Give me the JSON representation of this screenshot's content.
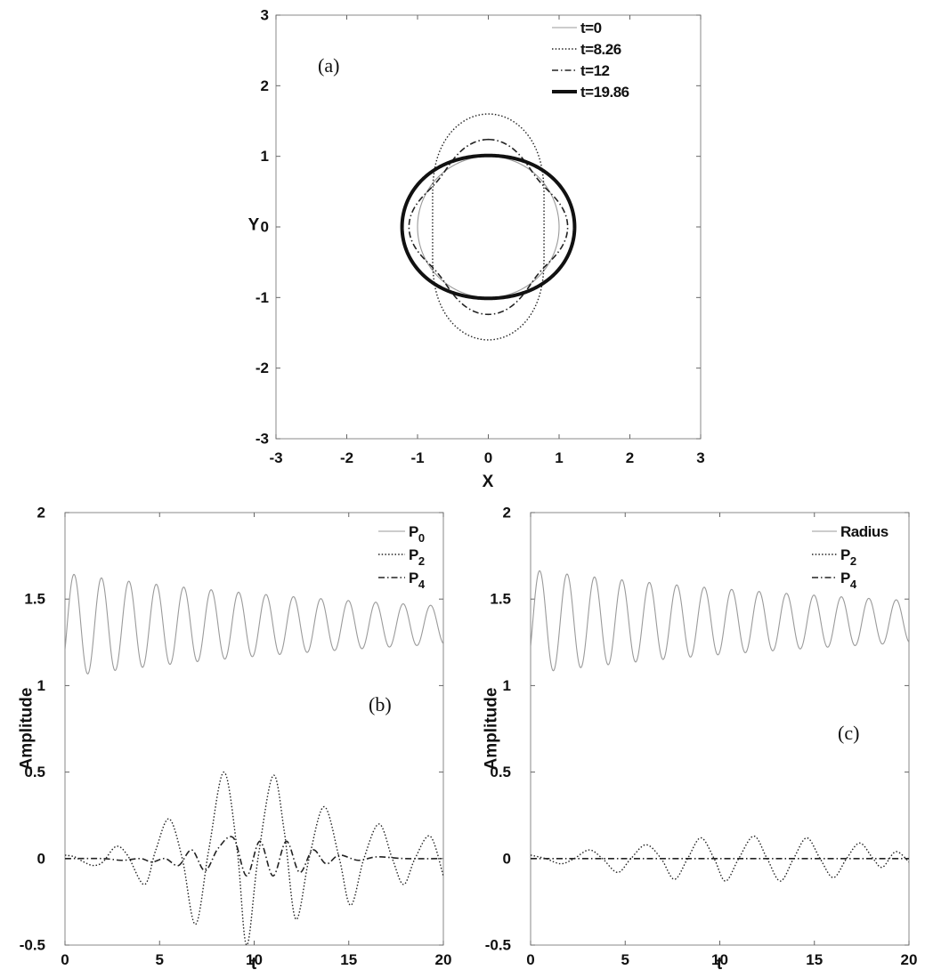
{
  "chart_data": [
    {
      "type": "line",
      "panel_label": "(a)",
      "xlabel": "X",
      "ylabel": "Y",
      "xlim": [
        -3,
        3
      ],
      "ylim": [
        -3,
        3
      ],
      "xticks": [
        "-3",
        "-2",
        "-1",
        "0",
        "1",
        "2",
        "3"
      ],
      "yticks": [
        "-3",
        "-2",
        "-1",
        "0",
        "1",
        "2",
        "3"
      ],
      "grid": false,
      "legend": "top-right",
      "series": [
        {
          "name": "t=0",
          "style": "thin-solid",
          "shape": {
            "a": 1.0,
            "P2": 0.0,
            "P4": 0.0
          }
        },
        {
          "name": "t=8.26",
          "style": "dotted",
          "shape": {
            "a": 1.0,
            "P2": 0.5,
            "P4": 0.1
          }
        },
        {
          "name": "t=12",
          "style": "dash-dot",
          "shape": {
            "a": 1.05,
            "P2": 0.0,
            "P4": 0.18
          }
        },
        {
          "name": "t=19.86",
          "style": "thick-solid",
          "shape": {
            "a": 1.15,
            "P2": -0.12,
            "P4": 0.0
          }
        }
      ]
    },
    {
      "type": "line",
      "panel_label": "(b)",
      "xlabel": "t",
      "ylabel": "Amplitude",
      "xlim": [
        0,
        20
      ],
      "ylim": [
        -0.5,
        2
      ],
      "xticks": [
        "0",
        "5",
        "10",
        "15",
        "20"
      ],
      "yticks": [
        "-0.5",
        "0",
        "0.5",
        "1",
        "1.5",
        "2"
      ],
      "grid": false,
      "legend": "top-right",
      "series": [
        {
          "name": "P",
          "subscript": "0",
          "style": "thin-solid",
          "model": {
            "type": "damped-sine",
            "offset": 1.35,
            "amp0": 0.3,
            "decay": 0.05,
            "period": 1.45,
            "floor": 0.09
          }
        },
        {
          "name": "P",
          "subscript": "2",
          "style": "dotted",
          "points": [
            [
              0,
              0.02
            ],
            [
              0.5,
              0.01
            ],
            [
              1,
              -0.02
            ],
            [
              1.5,
              -0.04
            ],
            [
              2,
              -0.02
            ],
            [
              2.7,
              0.07
            ],
            [
              3.3,
              0.02
            ],
            [
              4.2,
              -0.15
            ],
            [
              4.8,
              0.05
            ],
            [
              5.5,
              0.23
            ],
            [
              6.2,
              0.0
            ],
            [
              6.9,
              -0.38
            ],
            [
              7.6,
              0.05
            ],
            [
              8.4,
              0.5
            ],
            [
              9.1,
              0.05
            ],
            [
              9.6,
              -0.5
            ],
            [
              10.2,
              0.0
            ],
            [
              11.0,
              0.48
            ],
            [
              11.6,
              0.15
            ],
            [
              12.2,
              -0.35
            ],
            [
              12.9,
              0.0
            ],
            [
              13.7,
              0.3
            ],
            [
              14.5,
              0.0
            ],
            [
              15.1,
              -0.27
            ],
            [
              15.8,
              0.0
            ],
            [
              16.6,
              0.2
            ],
            [
              17.3,
              0.0
            ],
            [
              17.9,
              -0.15
            ],
            [
              18.5,
              0.0
            ],
            [
              19.3,
              0.13
            ],
            [
              20,
              -0.1
            ]
          ]
        },
        {
          "name": "P",
          "subscript": "4",
          "style": "dash-dot",
          "points": [
            [
              0,
              0.0
            ],
            [
              2,
              0.0
            ],
            [
              3,
              -0.01
            ],
            [
              4,
              0.0
            ],
            [
              4.6,
              -0.02
            ],
            [
              5.3,
              0.0
            ],
            [
              6.0,
              -0.04
            ],
            [
              6.7,
              0.05
            ],
            [
              7.4,
              -0.07
            ],
            [
              8.1,
              0.06
            ],
            [
              8.9,
              0.12
            ],
            [
              9.6,
              -0.1
            ],
            [
              10.3,
              0.1
            ],
            [
              11.0,
              -0.1
            ],
            [
              11.7,
              0.1
            ],
            [
              12.4,
              -0.08
            ],
            [
              13.1,
              0.05
            ],
            [
              13.8,
              -0.03
            ],
            [
              14.5,
              0.02
            ],
            [
              15.5,
              -0.01
            ],
            [
              16.5,
              0.01
            ],
            [
              18,
              0.0
            ],
            [
              20,
              0.0
            ]
          ]
        }
      ]
    },
    {
      "type": "line",
      "panel_label": "(c)",
      "xlabel": "t",
      "ylabel": "Amplitude",
      "xlim": [
        0,
        20
      ],
      "ylim": [
        -0.5,
        2
      ],
      "xticks": [
        "0",
        "5",
        "10",
        "15",
        "20"
      ],
      "yticks": [
        "-0.5",
        "0",
        "0.5",
        "1",
        "1.5",
        "2"
      ],
      "grid": false,
      "legend": "top-right",
      "series": [
        {
          "name": "Radius",
          "subscript": "",
          "style": "thin-solid",
          "model": {
            "type": "damped-sine",
            "offset": 1.37,
            "amp0": 0.3,
            "decay": 0.045,
            "period": 1.45,
            "floor": 0.09
          }
        },
        {
          "name": "P",
          "subscript": "2",
          "style": "dotted",
          "points": [
            [
              0,
              0.02
            ],
            [
              0.8,
              0.0
            ],
            [
              1.6,
              -0.03
            ],
            [
              2.3,
              0.0
            ],
            [
              3.1,
              0.05
            ],
            [
              3.8,
              0.0
            ],
            [
              4.6,
              -0.08
            ],
            [
              5.3,
              0.0
            ],
            [
              6.1,
              0.08
            ],
            [
              6.9,
              0.0
            ],
            [
              7.6,
              -0.12
            ],
            [
              8.3,
              0.0
            ],
            [
              9.0,
              0.12
            ],
            [
              9.7,
              0.0
            ],
            [
              10.3,
              -0.13
            ],
            [
              11.0,
              0.0
            ],
            [
              11.8,
              0.13
            ],
            [
              12.5,
              0.0
            ],
            [
              13.2,
              -0.13
            ],
            [
              13.9,
              0.0
            ],
            [
              14.6,
              0.12
            ],
            [
              15.3,
              0.0
            ],
            [
              16.0,
              -0.11
            ],
            [
              16.7,
              0.0
            ],
            [
              17.4,
              0.09
            ],
            [
              18.1,
              0.0
            ],
            [
              18.6,
              -0.05
            ],
            [
              19.3,
              0.04
            ],
            [
              20,
              -0.02
            ]
          ]
        },
        {
          "name": "P",
          "subscript": "4",
          "style": "dash-dot",
          "points": [
            [
              0,
              0.0
            ],
            [
              20,
              0.0
            ]
          ]
        }
      ]
    }
  ]
}
